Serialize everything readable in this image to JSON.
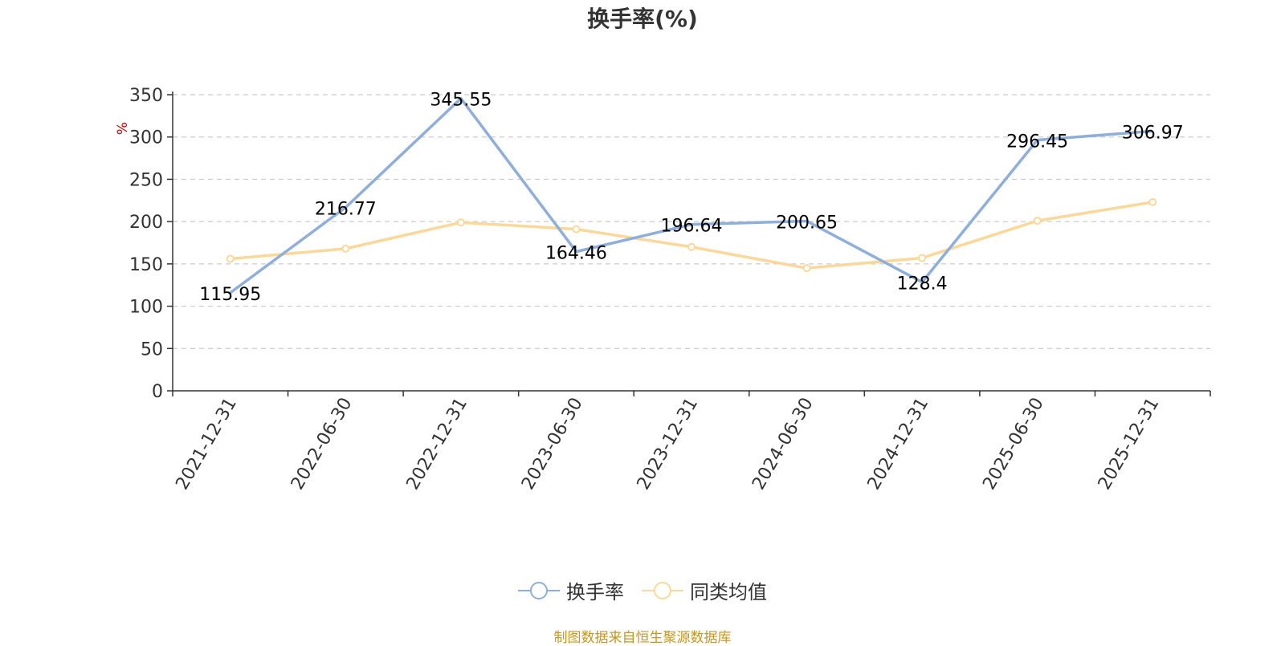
{
  "chart_data": {
    "type": "line",
    "title": "换手率(%)",
    "ylabel": "%",
    "xlabel": "",
    "ylim": [
      0,
      350
    ],
    "yticks": [
      0,
      50,
      100,
      150,
      200,
      250,
      300,
      350
    ],
    "grid": true,
    "legend_position": "bottom-center",
    "categories": [
      "2021-12-31",
      "2022-06-30",
      "2022-12-31",
      "2023-06-30",
      "2023-12-31",
      "2024-06-30",
      "2024-12-31",
      "2025-06-30",
      "2025-12-31"
    ],
    "series": [
      {
        "name": "换手率",
        "color": "#8eaedb",
        "values": [
          115.95,
          216.77,
          345.55,
          164.46,
          196.64,
          200.65,
          128.4,
          296.45,
          306.97
        ],
        "labels": [
          "115.95",
          "216.77",
          "345.55",
          "164.46",
          "196.64",
          "200.65",
          "128.4",
          "296.45",
          "306.97"
        ]
      },
      {
        "name": "同类均值",
        "color": "#fbd89a",
        "values": [
          156,
          168,
          199,
          191,
          170,
          145,
          157,
          201,
          223
        ]
      }
    ]
  },
  "footer": {
    "source": "制图数据来自恒生聚源数据库"
  }
}
